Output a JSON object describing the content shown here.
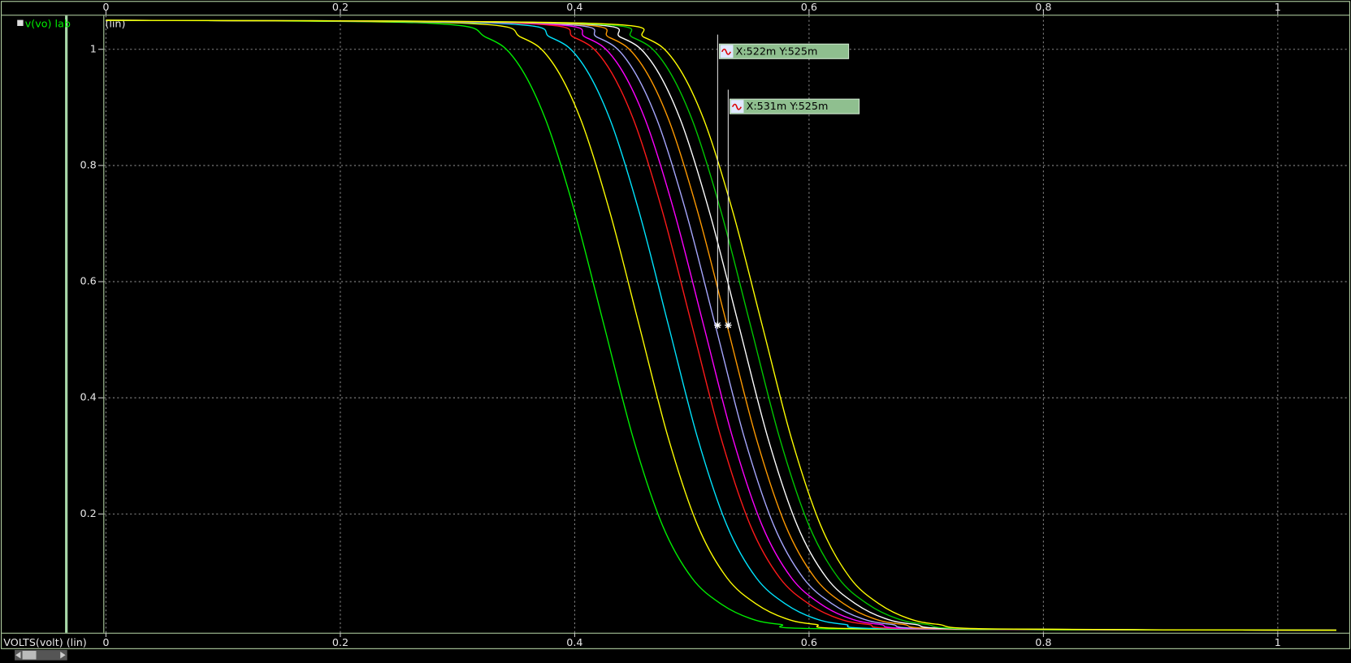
{
  "chart_data": {
    "type": "line",
    "legend_label": "v(vo) lab",
    "legend_unit": "(lin)",
    "x_label": "VOLTS(volt) (lin)",
    "xlim": [
      0,
      1.05
    ],
    "ylim": [
      0,
      1.055
    ],
    "xticks": [
      0,
      0.2,
      0.4,
      0.6,
      0.8,
      1
    ],
    "yticks": [
      0.2,
      0.4,
      0.6,
      0.8,
      1
    ],
    "grid": true,
    "series": [
      {
        "color": "#00ee00",
        "x": [
          0,
          0.275,
          0.325,
          0.35,
          0.375,
          0.4,
          0.425,
          0.45,
          0.475,
          0.5,
          0.525,
          0.55,
          0.575,
          0.625,
          1.05
        ],
        "values": [
          1.05,
          1.045,
          1.02,
          0.98,
          0.88,
          0.72,
          0.525,
          0.33,
          0.18,
          0.09,
          0.045,
          0.02,
          0.01,
          0.002,
          0
        ]
      },
      {
        "color": "#ffff00",
        "x": [
          0,
          0.305,
          0.355,
          0.38,
          0.405,
          0.43,
          0.455,
          0.48,
          0.505,
          0.53,
          0.555,
          0.58,
          0.605,
          0.655,
          1.05
        ],
        "values": [
          1.05,
          1.045,
          1.02,
          0.98,
          0.88,
          0.72,
          0.525,
          0.33,
          0.18,
          0.09,
          0.045,
          0.02,
          0.01,
          0.002,
          0
        ]
      },
      {
        "color": "#00e5ff",
        "x": [
          0,
          0.33,
          0.38,
          0.405,
          0.43,
          0.455,
          0.48,
          0.505,
          0.53,
          0.555,
          0.58,
          0.605,
          0.63,
          0.68,
          1.05
        ],
        "values": [
          1.05,
          1.045,
          1.02,
          0.98,
          0.88,
          0.72,
          0.525,
          0.33,
          0.18,
          0.09,
          0.045,
          0.02,
          0.01,
          0.002,
          0
        ]
      },
      {
        "color": "#ff1a1a",
        "x": [
          0,
          0.35,
          0.4,
          0.425,
          0.45,
          0.475,
          0.5,
          0.525,
          0.55,
          0.575,
          0.6,
          0.625,
          0.65,
          0.7,
          1.05
        ],
        "values": [
          1.05,
          1.045,
          1.02,
          0.98,
          0.88,
          0.72,
          0.525,
          0.33,
          0.18,
          0.09,
          0.045,
          0.02,
          0.01,
          0.002,
          0
        ]
      },
      {
        "color": "#ff00ff",
        "x": [
          0,
          0.36,
          0.41,
          0.435,
          0.46,
          0.485,
          0.51,
          0.535,
          0.56,
          0.585,
          0.61,
          0.635,
          0.66,
          0.71,
          1.05
        ],
        "values": [
          1.05,
          1.045,
          1.02,
          0.98,
          0.88,
          0.72,
          0.525,
          0.33,
          0.18,
          0.09,
          0.045,
          0.02,
          0.01,
          0.002,
          0
        ]
      },
      {
        "color": "#a8a8ff",
        "x": [
          0,
          0.37,
          0.42,
          0.445,
          0.47,
          0.495,
          0.52,
          0.545,
          0.57,
          0.595,
          0.62,
          0.645,
          0.67,
          0.72,
          1.05
        ],
        "values": [
          1.05,
          1.045,
          1.02,
          0.98,
          0.88,
          0.72,
          0.525,
          0.33,
          0.18,
          0.09,
          0.045,
          0.02,
          0.01,
          0.002,
          0
        ]
      },
      {
        "color": "#ff9a00",
        "x": [
          0,
          0.38,
          0.43,
          0.455,
          0.48,
          0.505,
          0.53,
          0.555,
          0.58,
          0.605,
          0.63,
          0.655,
          0.68,
          0.73,
          1.05
        ],
        "values": [
          1.05,
          1.045,
          1.02,
          0.98,
          0.88,
          0.72,
          0.525,
          0.33,
          0.18,
          0.09,
          0.045,
          0.02,
          0.01,
          0.002,
          0
        ]
      },
      {
        "color": "#ffffff",
        "x": [
          0,
          0.39,
          0.44,
          0.465,
          0.49,
          0.515,
          0.54,
          0.565,
          0.59,
          0.615,
          0.64,
          0.665,
          0.69,
          0.74,
          1.05
        ],
        "values": [
          1.05,
          1.045,
          1.02,
          0.98,
          0.88,
          0.72,
          0.525,
          0.33,
          0.18,
          0.09,
          0.045,
          0.02,
          0.01,
          0.002,
          0
        ]
      },
      {
        "color": "#00c800",
        "x": [
          0,
          0.4,
          0.45,
          0.475,
          0.5,
          0.525,
          0.55,
          0.575,
          0.6,
          0.625,
          0.65,
          0.675,
          0.7,
          0.75,
          1.05
        ],
        "values": [
          1.05,
          1.045,
          1.02,
          0.98,
          0.88,
          0.72,
          0.525,
          0.33,
          0.18,
          0.09,
          0.045,
          0.02,
          0.01,
          0.002,
          0
        ]
      },
      {
        "color": "#ffff00",
        "x": [
          0,
          0.41,
          0.46,
          0.485,
          0.51,
          0.535,
          0.56,
          0.585,
          0.61,
          0.635,
          0.66,
          0.685,
          0.71,
          0.76,
          1.05
        ],
        "values": [
          1.05,
          1.045,
          1.02,
          0.98,
          0.88,
          0.72,
          0.525,
          0.33,
          0.18,
          0.09,
          0.045,
          0.02,
          0.01,
          0.002,
          0
        ]
      }
    ],
    "annotations": [
      {
        "x": 0.522,
        "y": 0.525,
        "label": "X:522m Y:525m"
      },
      {
        "x": 0.531,
        "y": 0.525,
        "label": "X:531m Y:525m"
      }
    ]
  }
}
